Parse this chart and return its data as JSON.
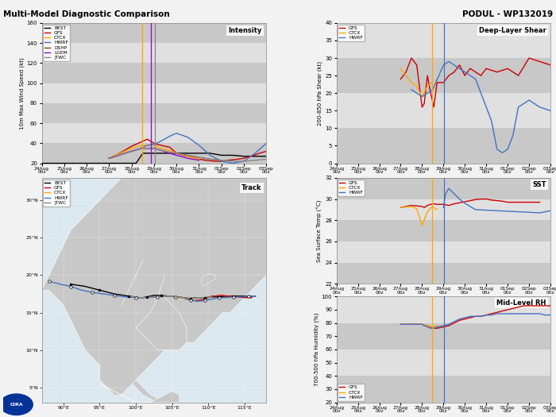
{
  "title_left": "Multi-Model Diagnostic Comparison",
  "title_right": "PODUL - WP132019",
  "colors": {
    "BEST": "#000000",
    "GFS": "#cc0000",
    "CTCX": "#ffa500",
    "HWRF": "#4472c4",
    "DSHP": "#8b4513",
    "LGEM": "#9400d3",
    "JTWC": "#888888"
  },
  "tick_labels": [
    "24Aug\n00z",
    "25Aug\n00z",
    "26Aug\n00z",
    "27Aug\n00z",
    "28Aug\n00z",
    "29Aug\n00z",
    "30Aug\n00z",
    "31Aug\n00z",
    "01Sep\n00z",
    "02Sep\n00z",
    "03Sep\n00z"
  ],
  "stripe_dark": "#c8c8c8",
  "stripe_light": "#e0e0e0",
  "bg_color": "#f2f2f2",
  "intensity": {
    "vline_yellow": 4.47,
    "vline_purple": 4.87,
    "vline_gray": 5.03,
    "BEST_x": [
      0,
      1,
      2,
      3,
      3.5,
      4,
      4.2,
      4.5,
      4.7,
      5,
      5.5,
      6,
      6.5,
      7,
      7.5,
      8,
      8.5,
      9,
      9.5,
      10
    ],
    "BEST_y": [
      20,
      20,
      20,
      20,
      20,
      20,
      20,
      30,
      30,
      30,
      30,
      30,
      30,
      30,
      30,
      28,
      28,
      27,
      27,
      27
    ],
    "GFS_x": [
      3,
      3.3,
      3.7,
      4,
      4.3,
      4.5,
      4.7,
      5,
      5.3,
      5.7,
      6,
      6.3,
      6.7,
      7,
      7.3,
      7.7,
      8,
      8.3,
      8.7,
      9,
      9.3,
      9.7,
      10
    ],
    "GFS_y": [
      25,
      28,
      33,
      37,
      40,
      42,
      44,
      40,
      38,
      36,
      30,
      28,
      26,
      24,
      23,
      22,
      22,
      23,
      24,
      25,
      27,
      30,
      32
    ],
    "CTCX_x": [
      3,
      3.3,
      3.7,
      4,
      4.3,
      4.5,
      4.7,
      5,
      5.3,
      5.7,
      6,
      6.5,
      7
    ],
    "CTCX_y": [
      25,
      28,
      32,
      35,
      37,
      38,
      38,
      38,
      35,
      33,
      30,
      27,
      24
    ],
    "HWRF_x": [
      3,
      3.3,
      3.7,
      4,
      4.3,
      4.5,
      4.7,
      5,
      5.3,
      5.7,
      6,
      6.5,
      7,
      7.5,
      8,
      8.5,
      9,
      9.5,
      10
    ],
    "HWRF_y": [
      25,
      27,
      30,
      32,
      34,
      36,
      38,
      39,
      42,
      47,
      50,
      46,
      38,
      28,
      22,
      20,
      22,
      30,
      40
    ],
    "DSHP_x": [
      3,
      3.3,
      3.7,
      4,
      4.3,
      4.5,
      4.7,
      5,
      5.3,
      5.7,
      6,
      6.5,
      7,
      7.5,
      8
    ],
    "DSHP_y": [
      25,
      27,
      30,
      32,
      34,
      35,
      35,
      35,
      33,
      31,
      30,
      28,
      26,
      24,
      23
    ],
    "LGEM_x": [
      3,
      3.3,
      3.7,
      4,
      4.3,
      4.5,
      4.7,
      5,
      5.3,
      5.7,
      6,
      6.5,
      7
    ],
    "LGEM_y": [
      25,
      27,
      30,
      32,
      34,
      35,
      35,
      35,
      33,
      30,
      28,
      25,
      23
    ],
    "JTWC_x": [
      3,
      3.3,
      3.7,
      4,
      4.3,
      4.5,
      4.7,
      5,
      5.3,
      5.7,
      6,
      6.5,
      7,
      7.5,
      8,
      8.5,
      9,
      9.5,
      10
    ],
    "JTWC_y": [
      25,
      27,
      30,
      32,
      34,
      35,
      35,
      35,
      33,
      31,
      30,
      28,
      26,
      24,
      23,
      22,
      22,
      23,
      24
    ]
  },
  "shear": {
    "vline_yellow": 4.47,
    "vline_blue": 5.03,
    "GFS_x": [
      3,
      3.25,
      3.5,
      3.75,
      4,
      4.1,
      4.25,
      4.4,
      4.55,
      4.7,
      5,
      5.25,
      5.5,
      5.75,
      6,
      6.25,
      6.5,
      6.75,
      7,
      7.5,
      8,
      8.5,
      9,
      9.5,
      10
    ],
    "GFS_y": [
      24,
      26,
      30,
      28,
      16,
      17,
      25,
      20,
      16,
      23,
      23,
      25,
      26,
      28,
      25,
      27,
      26,
      25,
      27,
      26,
      27,
      25,
      30,
      29,
      28
    ],
    "CTCX_x": [
      3,
      3.25,
      3.5,
      3.75,
      4,
      4.25,
      4.47
    ],
    "CTCX_y": [
      27,
      25,
      23,
      22,
      19,
      22,
      23
    ],
    "HWRF_x": [
      3.5,
      4,
      4.5,
      5,
      5.25,
      5.5,
      5.75,
      6,
      6.5,
      7,
      7.25,
      7.5,
      7.75,
      8,
      8.25,
      8.5,
      9,
      9.5,
      10
    ],
    "HWRF_y": [
      21,
      19,
      21,
      28,
      29,
      28,
      27,
      26,
      24,
      16,
      12,
      4,
      3,
      4,
      8,
      16,
      18,
      16,
      15
    ]
  },
  "sst": {
    "vline_yellow": 4.47,
    "vline_blue": 5.03,
    "GFS_x": [
      3,
      3.25,
      3.5,
      3.75,
      4,
      4.1,
      4.25,
      4.4,
      4.55,
      4.7,
      5,
      5.25,
      5.5,
      5.75,
      6,
      6.25,
      6.5,
      6.75,
      7,
      7.25,
      7.5,
      7.75,
      8,
      9.5
    ],
    "GFS_y": [
      29.2,
      29.3,
      29.4,
      29.35,
      29.3,
      29.2,
      29.4,
      29.5,
      29.55,
      29.5,
      29.5,
      29.4,
      29.55,
      29.65,
      29.75,
      29.85,
      29.95,
      30.0,
      30.0,
      29.9,
      29.85,
      29.8,
      29.7,
      29.7
    ],
    "CTCX_x": [
      3,
      3.25,
      3.5,
      3.75,
      4,
      4.25,
      4.47,
      4.7
    ],
    "CTCX_y": [
      29.2,
      29.25,
      29.3,
      29.1,
      27.5,
      28.8,
      29.3,
      29.0
    ],
    "HWRF_x": [
      5,
      5.1,
      5.25,
      5.5,
      5.75,
      6,
      6.25,
      6.5,
      9.5,
      10
    ],
    "HWRF_y": [
      29.2,
      30.5,
      31.0,
      30.5,
      30.0,
      29.6,
      29.3,
      29.0,
      28.7,
      28.9
    ]
  },
  "rh": {
    "vline_yellow": 4.47,
    "vline_blue": 5.03,
    "GFS_x": [
      3,
      3.25,
      3.5,
      3.75,
      4,
      4.1,
      4.25,
      4.4,
      4.55,
      4.7,
      5,
      5.25,
      5.5,
      5.75,
      6,
      6.25,
      6.5,
      6.75,
      7,
      7.25,
      7.5,
      7.75,
      8,
      8.25,
      8.5,
      8.75,
      9,
      9.25,
      9.5,
      9.75,
      10
    ],
    "GFS_y": [
      79,
      79,
      79,
      79,
      79,
      78,
      78,
      77,
      76,
      76,
      77,
      78,
      80,
      82,
      83,
      84,
      85,
      85,
      86,
      87,
      88,
      89,
      90,
      91,
      92,
      93,
      93,
      93,
      93,
      93,
      93
    ],
    "CTCX_x": [
      3,
      3.25,
      3.5,
      3.75,
      4,
      4.25,
      4.47,
      4.7
    ],
    "CTCX_y": [
      79,
      79,
      79,
      79,
      79,
      78,
      77,
      78
    ],
    "HWRF_x": [
      3,
      3.25,
      3.5,
      3.75,
      4,
      4.1,
      4.25,
      4.4,
      4.55,
      4.7,
      5,
      5.25,
      5.5,
      5.75,
      6,
      6.25,
      6.5,
      6.75,
      7,
      7.25,
      7.5,
      7.75,
      8,
      8.25,
      8.5,
      8.75,
      9,
      9.25,
      9.5,
      9.75,
      10
    ],
    "HWRF_y": [
      79,
      79,
      79,
      79,
      79,
      78,
      77,
      76,
      76,
      77,
      78,
      79,
      81,
      83,
      84,
      85,
      85,
      85,
      86,
      86,
      87,
      87,
      87,
      87,
      87,
      87,
      87,
      87,
      87,
      86,
      86
    ]
  },
  "track": {
    "BEST_lon": [
      91.0,
      93.0,
      95.0,
      97.0,
      99.0,
      100.5,
      101.0,
      101.5,
      102.0,
      102.5,
      103.5,
      104.5,
      105.5,
      106.5,
      107.5,
      108.5,
      109.5,
      110.5,
      111.5,
      112.5,
      113.5,
      114.5,
      115.5,
      116.5
    ],
    "BEST_lat": [
      18.8,
      18.5,
      18.0,
      17.5,
      17.2,
      17.0,
      17.0,
      17.1,
      17.2,
      17.3,
      17.3,
      17.2,
      17.1,
      17.0,
      16.9,
      17.0,
      17.0,
      17.1,
      17.1,
      17.2,
      17.2,
      17.2,
      17.2,
      17.2
    ],
    "GFS_lon": [
      104.5,
      105.0,
      105.5,
      106.5,
      107.0,
      107.5,
      108.0,
      109.0,
      109.5,
      110.0,
      110.5,
      111.0,
      111.5,
      112.0,
      112.5,
      113.0,
      113.5,
      114.0,
      115.0,
      116.0
    ],
    "GFS_lat": [
      17.2,
      17.2,
      17.1,
      17.0,
      16.8,
      16.7,
      16.6,
      16.7,
      16.8,
      17.0,
      17.2,
      17.2,
      17.3,
      17.3,
      17.2,
      17.2,
      17.1,
      17.1,
      17.0,
      17.0
    ],
    "CTCX_lon": [
      104.5,
      105.0,
      105.5,
      106.0,
      106.5,
      107.0,
      107.5
    ],
    "CTCX_lat": [
      17.2,
      17.2,
      17.1,
      17.0,
      16.9,
      16.9,
      17.0
    ],
    "HWRF_lon": [
      88.0,
      89.5,
      91.0,
      92.5,
      94.0,
      95.5,
      97.0,
      98.5,
      100.0,
      101.5,
      103.0,
      104.5,
      105.5,
      106.5,
      107.5,
      108.5,
      109.5,
      110.5,
      111.5,
      112.5,
      113.5,
      114.5,
      115.5,
      116.5
    ],
    "HWRF_lat": [
      19.2,
      18.8,
      18.5,
      18.0,
      17.7,
      17.5,
      17.3,
      17.1,
      17.0,
      17.0,
      17.1,
      17.2,
      17.1,
      17.0,
      16.7,
      16.5,
      16.6,
      16.8,
      17.0,
      17.0,
      17.1,
      17.1,
      17.2,
      17.2
    ],
    "JTWC_lon": [
      99.0,
      100.5,
      101.5,
      102.5,
      103.5,
      104.5,
      105.5,
      106.5,
      107.5,
      108.5,
      109.5,
      110.5
    ],
    "JTWC_lat": [
      17.2,
      17.0,
      17.0,
      17.1,
      17.2,
      17.2,
      17.1,
      17.0,
      16.9,
      17.0,
      17.0,
      17.1
    ],
    "BEST_dot_lon": [
      91.0,
      95.0,
      99.0,
      101.5,
      103.5,
      105.5,
      107.5,
      109.5,
      111.5,
      113.5,
      115.5
    ],
    "BEST_dot_lat": [
      18.8,
      18.0,
      17.2,
      17.1,
      17.3,
      17.1,
      16.9,
      17.0,
      17.1,
      17.2,
      17.2
    ],
    "HWRF_open_lon": [
      88.0,
      91.0,
      94.0,
      97.0,
      100.0,
      103.0,
      105.5,
      107.5,
      109.5,
      111.5,
      113.5,
      115.5
    ],
    "HWRF_open_lat": [
      19.2,
      18.5,
      17.7,
      17.3,
      17.0,
      17.1,
      17.1,
      16.7,
      16.6,
      17.0,
      17.1,
      17.2
    ]
  },
  "land_color": "#c8c8c8",
  "ocean_color": "#dce8f0",
  "border_color": "#ffffff"
}
